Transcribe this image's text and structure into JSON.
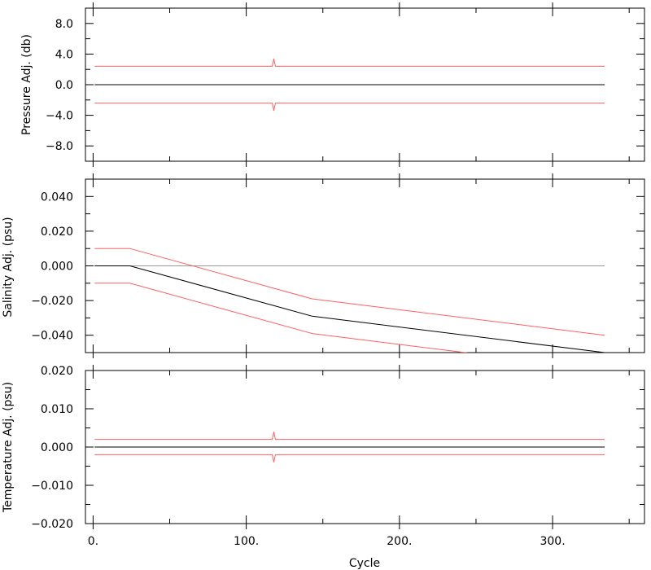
{
  "chart_data": [
    {
      "type": "line",
      "ylabel": "Pressure Adj. (db)",
      "ylim": [
        -10,
        10
      ],
      "xlim": [
        -5,
        360
      ],
      "yticks_major": [
        -8.0,
        -4.0,
        0.0,
        4.0,
        8.0
      ],
      "ytick_labels": [
        "−8.0",
        "−4.0",
        "0.0",
        "4.0",
        "8.0"
      ],
      "yticks_minor": [
        -10,
        -6,
        -2,
        2,
        6,
        10
      ],
      "series": [
        {
          "role": "adjustment",
          "color": "#000000",
          "x": [
            1,
            334
          ],
          "y": [
            0.0,
            0.0
          ]
        },
        {
          "role": "upper-error",
          "color": "#ff6060",
          "x": [
            1,
            117,
            118,
            119,
            334
          ],
          "y": [
            2.4,
            2.4,
            3.4,
            2.4,
            2.4
          ]
        },
        {
          "role": "lower-error",
          "color": "#ff6060",
          "x": [
            1,
            117,
            118,
            119,
            334
          ],
          "y": [
            -2.4,
            -2.4,
            -3.4,
            -2.4,
            -2.4
          ]
        }
      ]
    },
    {
      "type": "line",
      "ylabel": "Salinity Adj. (psu)",
      "ylim": [
        -0.05,
        0.05
      ],
      "xlim": [
        -5,
        360
      ],
      "yticks_major": [
        -0.04,
        -0.02,
        0.0,
        0.02,
        0.04
      ],
      "ytick_labels": [
        "−0.040",
        "−0.020",
        "0.000",
        "0.020",
        "0.040"
      ],
      "yticks_minor": [
        -0.05,
        -0.03,
        -0.01,
        0.01,
        0.03,
        0.05
      ],
      "series": [
        {
          "role": "zero-reference",
          "color": "#999999",
          "x": [
            1,
            334
          ],
          "y": [
            0.0,
            0.0
          ]
        },
        {
          "role": "adjustment",
          "color": "#000000",
          "x": [
            1,
            24,
            143,
            334
          ],
          "y": [
            0.0,
            0.0,
            -0.029,
            -0.05
          ]
        },
        {
          "role": "upper-error",
          "color": "#ff6060",
          "x": [
            1,
            24,
            143,
            334
          ],
          "y": [
            0.01,
            0.01,
            -0.019,
            -0.04
          ]
        },
        {
          "role": "lower-error",
          "color": "#ff6060",
          "x": [
            1,
            24,
            143,
            334
          ],
          "y": [
            -0.01,
            -0.01,
            -0.039,
            -0.06
          ]
        }
      ]
    },
    {
      "type": "line",
      "ylabel": "Temperature Adj. (psu)",
      "xlabel": "Cycle",
      "ylim": [
        -0.02,
        0.02
      ],
      "xlim": [
        -5,
        360
      ],
      "yticks_major": [
        -0.02,
        -0.01,
        0.0,
        0.01,
        0.02
      ],
      "ytick_labels": [
        "−0.020",
        "−0.010",
        "0.000",
        "0.010",
        "0.020"
      ],
      "yticks_minor": [
        -0.015,
        -0.005,
        0.005,
        0.015
      ],
      "xticks_major": [
        0,
        100,
        200,
        300
      ],
      "xtick_labels": [
        "0.",
        "100.",
        "200.",
        "300."
      ],
      "xticks_minor": [
        50,
        150,
        250,
        350
      ],
      "series": [
        {
          "role": "adjustment",
          "color": "#000000",
          "x": [
            1,
            334
          ],
          "y": [
            0.0,
            0.0
          ]
        },
        {
          "role": "upper-error",
          "color": "#ff6060",
          "x": [
            1,
            117,
            118,
            119,
            334
          ],
          "y": [
            0.002,
            0.002,
            0.004,
            0.002,
            0.002
          ]
        },
        {
          "role": "lower-error",
          "color": "#ff6060",
          "x": [
            1,
            117,
            118,
            119,
            334
          ],
          "y": [
            -0.002,
            -0.002,
            -0.004,
            -0.002,
            -0.002
          ]
        }
      ]
    }
  ]
}
